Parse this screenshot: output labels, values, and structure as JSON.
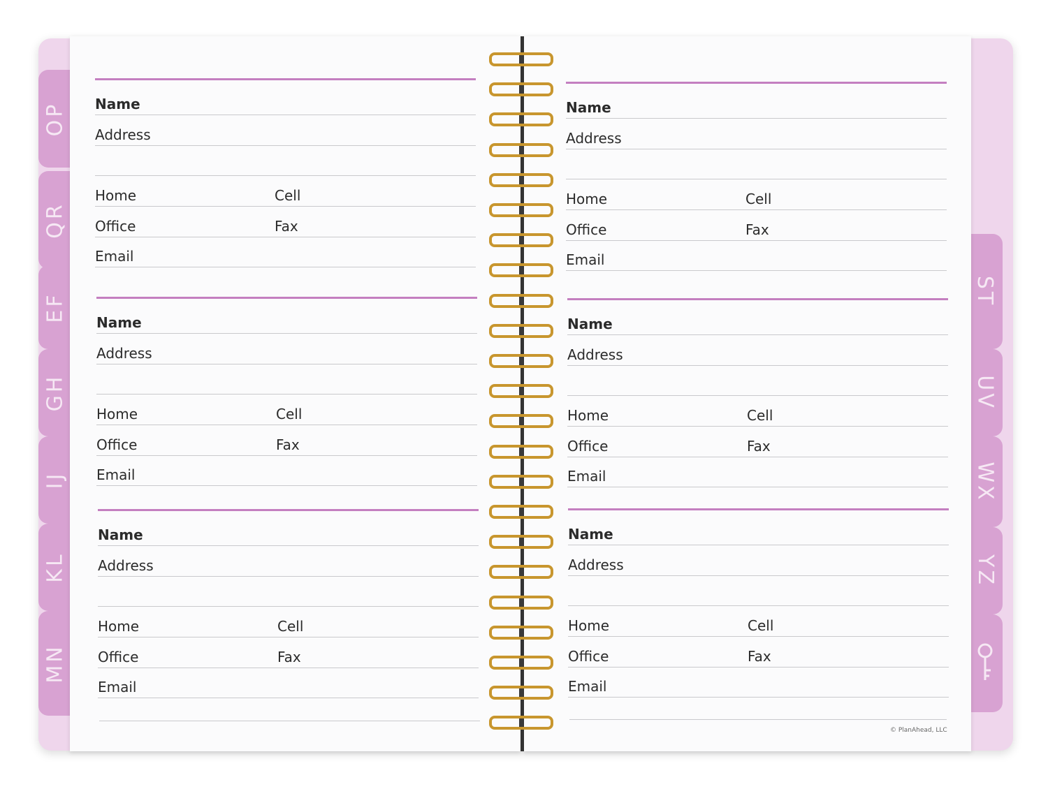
{
  "tabs_left": [
    "OP",
    "QR",
    "EF",
    "GH",
    "IJ",
    "KL",
    "MN"
  ],
  "tabs_right": [
    "ST",
    "UV",
    "WX",
    "YZ"
  ],
  "tab_right_icon": "key-icon",
  "labels": {
    "name": "Name",
    "address": "Address",
    "home": "Home",
    "cell": "Cell",
    "office": "Office",
    "fax": "Fax",
    "email": "Email"
  },
  "entries_per_page": 3,
  "copyright": "© PlanAhead, LLC",
  "colors": {
    "accent": "#c47fc0",
    "tab": "#d8a2d2",
    "coil": "#c8962e"
  }
}
